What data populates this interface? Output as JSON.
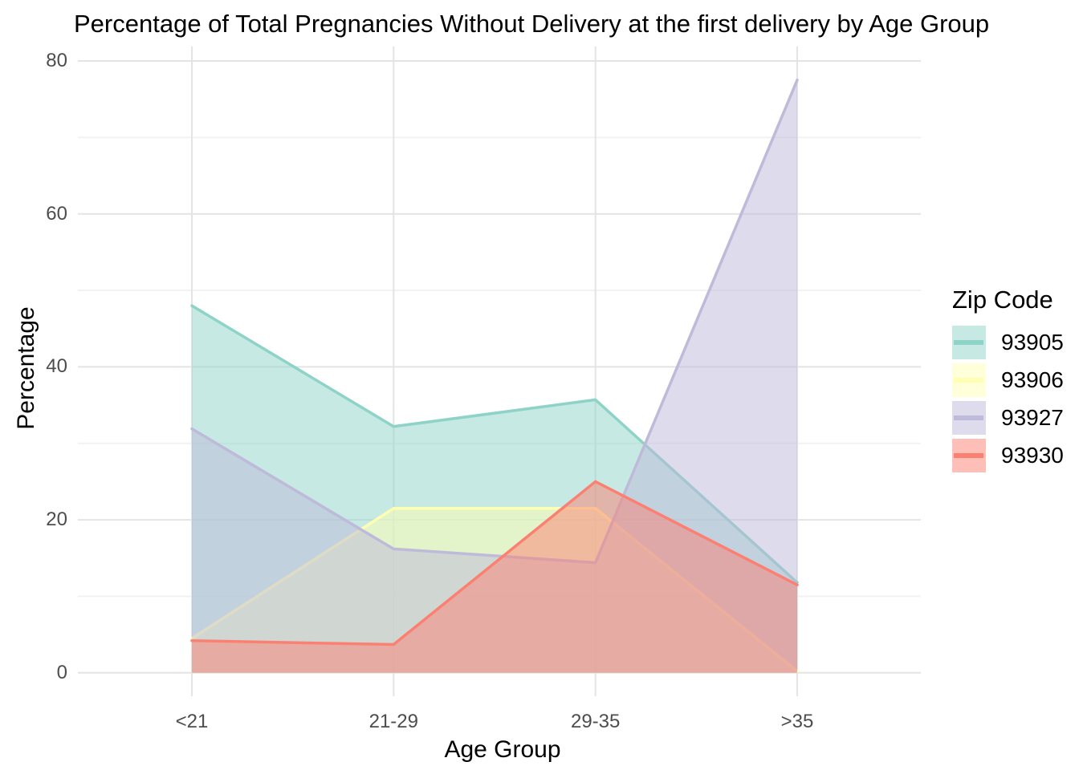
{
  "title": "Percentage of Total Pregnancies Without Delivery at the first delivery by Age Group",
  "chart_data": {
    "type": "area",
    "categories": [
      "<21",
      "21-29",
      "29-35",
      ">35"
    ],
    "series": [
      {
        "name": "93905",
        "color": "#8DD3C7",
        "values": [
          48.0,
          32.2,
          35.7,
          11.8
        ]
      },
      {
        "name": "93906",
        "color": "#FFFFB3",
        "values": [
          4.5,
          21.5,
          21.5,
          0.2
        ]
      },
      {
        "name": "93927",
        "color": "#BEBADA",
        "values": [
          31.9,
          16.2,
          14.4,
          77.5
        ]
      },
      {
        "name": "93930",
        "color": "#FB8072",
        "values": [
          4.2,
          3.7,
          25.0,
          11.5
        ]
      }
    ],
    "xlabel": "Age Group",
    "ylabel": "Percentage",
    "ylim": [
      0,
      80
    ],
    "yticks": [
      0,
      20,
      40,
      60,
      80
    ],
    "minor_yticks": [
      10,
      30,
      50,
      70
    ],
    "legend_title": "Zip Code",
    "legend_position": "right",
    "fill_opacity": 0.5,
    "grid": true,
    "major_grid_color": "#E4E4E4",
    "minor_grid_color": "#F2F2F2",
    "tick_label_color": "#4d4d4d",
    "background": "#ffffff"
  }
}
